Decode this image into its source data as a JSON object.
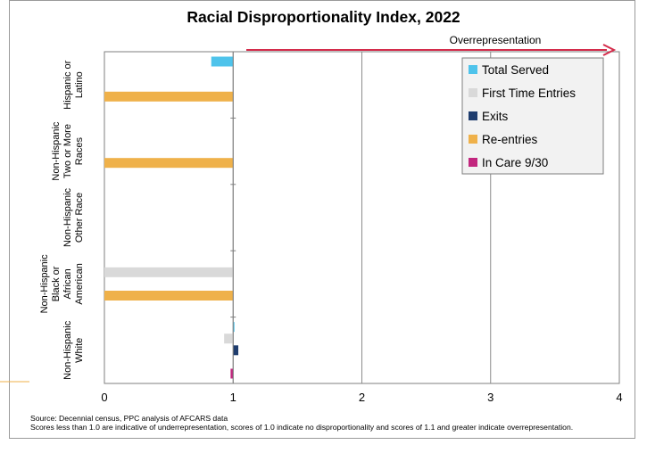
{
  "chart_data": {
    "type": "bar",
    "orientation": "horizontal",
    "title": "Racial Disproportionality Index, 2022",
    "annotation": "Overrepresentation",
    "xlim": [
      0,
      4
    ],
    "x_ticks": [
      "0",
      "1",
      "2",
      "3",
      "4"
    ],
    "grid": true,
    "legend_position": "top-right",
    "categories": [
      "Hispanic or Latino",
      "Non-Hispanic Two or More Races",
      "Non-Hispanic Other Race",
      "Non-Hispanic Black or African American",
      "Non-Hispanic White"
    ],
    "category_label_lines": [
      [
        "Hispanic or",
        "Latino"
      ],
      [
        "Non-Hispanic",
        "Two or More",
        "Races"
      ],
      [
        "Non-Hispanic",
        "Other Race"
      ],
      [
        "Non-Hispanic",
        "Black or",
        "African",
        "American"
      ],
      [
        "Non-Hispanic",
        "White"
      ]
    ],
    "series": [
      {
        "name": "Total Served",
        "color": "#4EC3EB",
        "values": [
          0.83,
          null,
          null,
          null,
          1.01
        ]
      },
      {
        "name": "First Time Entries",
        "color": "#D9D9D9",
        "values": [
          null,
          null,
          null,
          0.0,
          0.93
        ]
      },
      {
        "name": "Exits",
        "color": "#1F3D6E",
        "values": [
          null,
          null,
          null,
          null,
          1.04
        ]
      },
      {
        "name": "Re-entries",
        "color": "#EFB14A",
        "values": [
          0.0,
          0.0,
          null,
          0.0,
          null
        ]
      },
      {
        "name": "In Care 9/30",
        "color": "#C2267E",
        "values": [
          null,
          null,
          null,
          null,
          0.98
        ]
      }
    ]
  },
  "notes": {
    "source": "Source: Decennial census, PPC analysis of AFCARS data",
    "explanation": "Scores less than 1.0 are indicative of underrepresentation, scores of 1.0 indicate no disproportionality and scores of 1.1 and greater indicate overrepresentation."
  }
}
